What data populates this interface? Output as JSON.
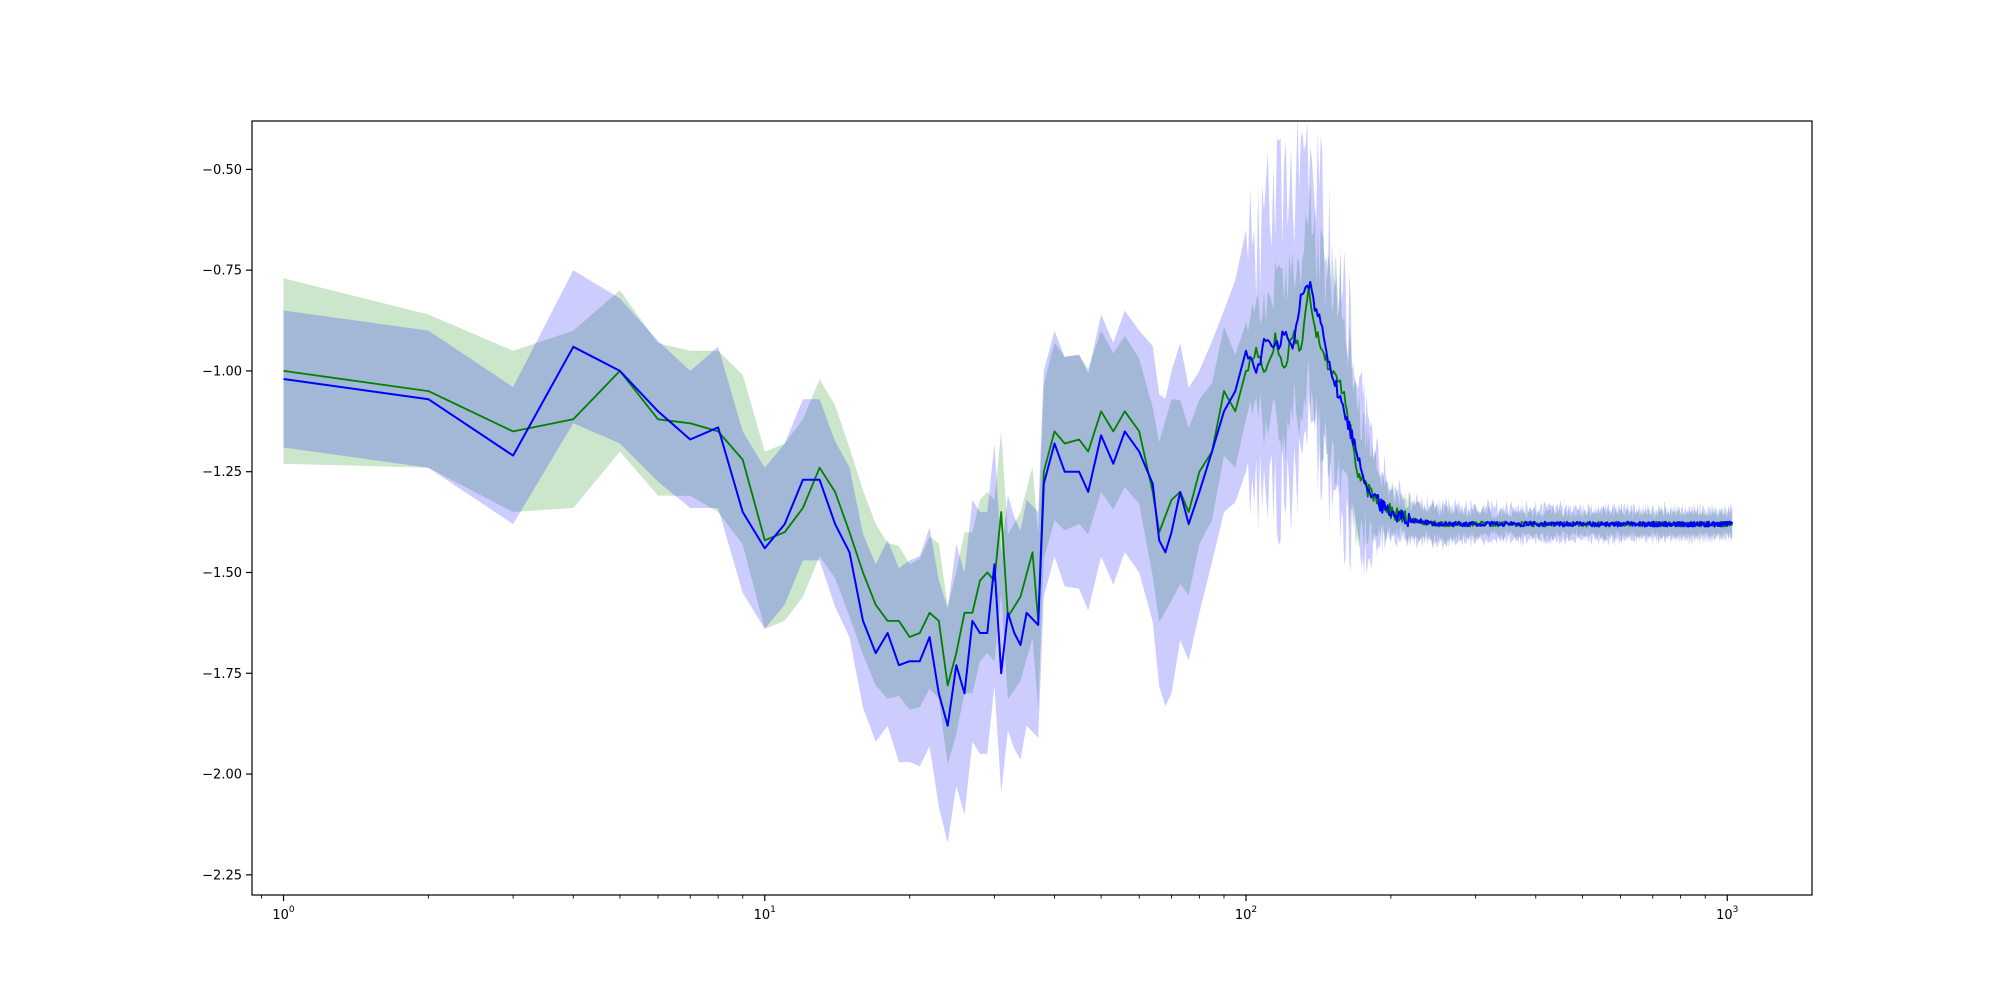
{
  "chart_data": {
    "type": "line",
    "x_scale": "log",
    "xlim": [
      0.86,
      1500
    ],
    "ylim": [
      -2.3,
      -0.38
    ],
    "grid": false,
    "legend": "none",
    "x_tick_values": [
      1,
      10,
      100,
      1000
    ],
    "x_ticks": [
      {
        "base": "10",
        "exp": "0"
      },
      {
        "base": "10",
        "exp": "1"
      },
      {
        "base": "10",
        "exp": "2"
      },
      {
        "base": "10",
        "exp": "3"
      }
    ],
    "y_ticks": [
      "-0.50",
      "-0.75",
      "-1.00",
      "-1.25",
      "-1.50",
      "-1.75",
      "-2.00",
      "-2.25"
    ],
    "y_tick_values": [
      -0.5,
      -0.75,
      -1.0,
      -1.25,
      -1.5,
      -1.75,
      -2.0,
      -2.25
    ],
    "series": [
      {
        "color": "#008000",
        "band_color": "#008000",
        "band_opacity": 0.2,
        "band_width": [
          [
            1,
            0.23
          ],
          [
            2,
            0.19
          ],
          [
            3,
            0.2
          ],
          [
            4,
            0.22
          ],
          [
            5,
            0.2
          ],
          [
            7,
            0.18
          ],
          [
            8,
            0.2
          ],
          [
            10,
            0.22
          ],
          [
            13,
            0.22
          ],
          [
            17,
            0.2
          ],
          [
            20,
            0.18
          ],
          [
            25,
            0.2
          ],
          [
            30,
            0.2
          ],
          [
            40,
            0.22
          ],
          [
            50,
            0.2
          ],
          [
            60,
            0.18
          ],
          [
            70,
            0.25
          ],
          [
            80,
            0.18
          ],
          [
            90,
            0.16
          ],
          [
            100,
            0.12
          ],
          [
            130,
            0.2
          ],
          [
            160,
            0.22
          ],
          [
            180,
            0.1
          ],
          [
            200,
            0.05
          ],
          [
            300,
            0.03
          ],
          [
            1000,
            0.03
          ]
        ],
        "points": [
          [
            1,
            -1.0
          ],
          [
            2,
            -1.05
          ],
          [
            3,
            -1.15
          ],
          [
            4,
            -1.12
          ],
          [
            5,
            -1.0
          ],
          [
            6,
            -1.12
          ],
          [
            7,
            -1.13
          ],
          [
            8,
            -1.15
          ],
          [
            9,
            -1.22
          ],
          [
            10,
            -1.42
          ],
          [
            11,
            -1.4
          ],
          [
            12,
            -1.34
          ],
          [
            13,
            -1.24
          ],
          [
            14,
            -1.3
          ],
          [
            15,
            -1.4
          ],
          [
            16,
            -1.5
          ],
          [
            17,
            -1.58
          ],
          [
            18,
            -1.62
          ],
          [
            19,
            -1.62
          ],
          [
            20,
            -1.66
          ],
          [
            21,
            -1.65
          ],
          [
            22,
            -1.6
          ],
          [
            23,
            -1.62
          ],
          [
            24,
            -1.78
          ],
          [
            25,
            -1.7
          ],
          [
            26,
            -1.6
          ],
          [
            27,
            -1.6
          ],
          [
            28,
            -1.52
          ],
          [
            29,
            -1.5
          ],
          [
            30,
            -1.52
          ],
          [
            31,
            -1.35
          ],
          [
            32,
            -1.61
          ],
          [
            34,
            -1.56
          ],
          [
            36,
            -1.45
          ],
          [
            37,
            -1.62
          ],
          [
            38,
            -1.25
          ],
          [
            40,
            -1.15
          ],
          [
            42,
            -1.18
          ],
          [
            45,
            -1.17
          ],
          [
            47,
            -1.2
          ],
          [
            50,
            -1.1
          ],
          [
            53,
            -1.15
          ],
          [
            56,
            -1.1
          ],
          [
            60,
            -1.15
          ],
          [
            64,
            -1.3
          ],
          [
            66,
            -1.4
          ],
          [
            70,
            -1.32
          ],
          [
            73,
            -1.3
          ],
          [
            76,
            -1.35
          ],
          [
            80,
            -1.25
          ],
          [
            85,
            -1.2
          ],
          [
            90,
            -1.05
          ],
          [
            95,
            -1.1
          ],
          [
            100,
            -1.0
          ],
          [
            105,
            -0.95
          ],
          [
            110,
            -1.0
          ],
          [
            115,
            -0.92
          ],
          [
            120,
            -1.0
          ],
          [
            125,
            -0.9
          ],
          [
            130,
            -0.95
          ],
          [
            135,
            -0.8
          ],
          [
            140,
            -0.9
          ],
          [
            145,
            -0.95
          ],
          [
            150,
            -1.0
          ],
          [
            160,
            -1.05
          ],
          [
            170,
            -1.25
          ],
          [
            180,
            -1.3
          ],
          [
            190,
            -1.32
          ],
          [
            200,
            -1.35
          ],
          [
            220,
            -1.37
          ],
          [
            250,
            -1.38
          ],
          [
            300,
            -1.38
          ],
          [
            400,
            -1.38
          ],
          [
            600,
            -1.38
          ],
          [
            1000,
            -1.38
          ]
        ]
      },
      {
        "color": "#0000ff",
        "band_color": "#0000ff",
        "band_opacity": 0.2,
        "band_width": [
          [
            1,
            0.17
          ],
          [
            2,
            0.17
          ],
          [
            3,
            0.17
          ],
          [
            4,
            0.19
          ],
          [
            5,
            0.18
          ],
          [
            7,
            0.17
          ],
          [
            8,
            0.2
          ],
          [
            10,
            0.2
          ],
          [
            13,
            0.2
          ],
          [
            17,
            0.22
          ],
          [
            20,
            0.25
          ],
          [
            25,
            0.3
          ],
          [
            30,
            0.3
          ],
          [
            35,
            0.28
          ],
          [
            40,
            0.28
          ],
          [
            50,
            0.3
          ],
          [
            60,
            0.3
          ],
          [
            70,
            0.4
          ],
          [
            80,
            0.3
          ],
          [
            90,
            0.25
          ],
          [
            100,
            0.3
          ],
          [
            120,
            0.38
          ],
          [
            140,
            0.35
          ],
          [
            160,
            0.3
          ],
          [
            180,
            0.15
          ],
          [
            200,
            0.06
          ],
          [
            300,
            0.04
          ],
          [
            1000,
            0.035
          ]
        ],
        "points": [
          [
            1,
            -1.02
          ],
          [
            2,
            -1.07
          ],
          [
            3,
            -1.21
          ],
          [
            4,
            -0.94
          ],
          [
            5,
            -1.0
          ],
          [
            6,
            -1.1
          ],
          [
            7,
            -1.17
          ],
          [
            8,
            -1.14
          ],
          [
            9,
            -1.35
          ],
          [
            10,
            -1.44
          ],
          [
            11,
            -1.38
          ],
          [
            12,
            -1.27
          ],
          [
            13,
            -1.27
          ],
          [
            14,
            -1.38
          ],
          [
            15,
            -1.45
          ],
          [
            16,
            -1.62
          ],
          [
            17,
            -1.7
          ],
          [
            18,
            -1.65
          ],
          [
            19,
            -1.73
          ],
          [
            20,
            -1.72
          ],
          [
            21,
            -1.72
          ],
          [
            22,
            -1.66
          ],
          [
            23,
            -1.8
          ],
          [
            24,
            -1.88
          ],
          [
            25,
            -1.73
          ],
          [
            26,
            -1.8
          ],
          [
            27,
            -1.62
          ],
          [
            28,
            -1.65
          ],
          [
            29,
            -1.65
          ],
          [
            30,
            -1.48
          ],
          [
            31,
            -1.75
          ],
          [
            32,
            -1.6
          ],
          [
            33,
            -1.65
          ],
          [
            34,
            -1.68
          ],
          [
            35,
            -1.6
          ],
          [
            37,
            -1.63
          ],
          [
            38,
            -1.28
          ],
          [
            40,
            -1.18
          ],
          [
            42,
            -1.25
          ],
          [
            45,
            -1.25
          ],
          [
            47,
            -1.3
          ],
          [
            50,
            -1.16
          ],
          [
            53,
            -1.23
          ],
          [
            56,
            -1.15
          ],
          [
            60,
            -1.2
          ],
          [
            64,
            -1.28
          ],
          [
            66,
            -1.42
          ],
          [
            68,
            -1.45
          ],
          [
            70,
            -1.4
          ],
          [
            73,
            -1.3
          ],
          [
            76,
            -1.38
          ],
          [
            80,
            -1.3
          ],
          [
            85,
            -1.2
          ],
          [
            90,
            -1.1
          ],
          [
            95,
            -1.05
          ],
          [
            100,
            -0.95
          ],
          [
            105,
            -1.0
          ],
          [
            110,
            -0.92
          ],
          [
            115,
            -0.95
          ],
          [
            120,
            -0.9
          ],
          [
            125,
            -0.95
          ],
          [
            130,
            -0.82
          ],
          [
            135,
            -0.78
          ],
          [
            140,
            -0.85
          ],
          [
            145,
            -0.9
          ],
          [
            150,
            -1.0
          ],
          [
            160,
            -1.1
          ],
          [
            170,
            -1.2
          ],
          [
            180,
            -1.3
          ],
          [
            190,
            -1.33
          ],
          [
            200,
            -1.35
          ],
          [
            220,
            -1.37
          ],
          [
            250,
            -1.38
          ],
          [
            300,
            -1.38
          ],
          [
            400,
            -1.38
          ],
          [
            600,
            -1.38
          ],
          [
            1000,
            -1.38
          ]
        ]
      }
    ]
  },
  "colors": {
    "overlap_band": "#99abd0",
    "axes": "#000000",
    "background": "#ffffff"
  }
}
